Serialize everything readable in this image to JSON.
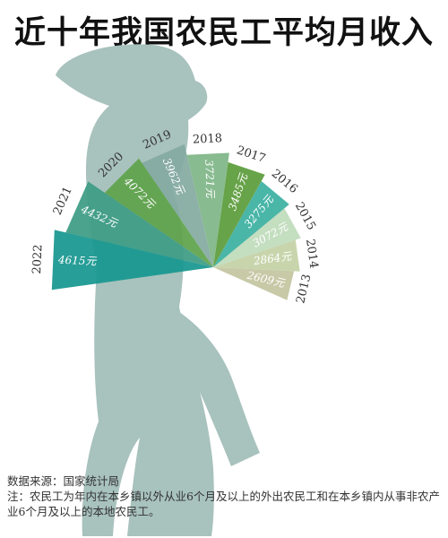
{
  "title": "近十年我国农民工平均月收入",
  "source": "数据来源：国家统计局",
  "note": "注：农民工为年内在本乡镇以外从业6个月及以上的外出农民工和在本乡镇内从事非农产业6个月及以上的本地农民工。",
  "chart_data": {
    "type": "radial-bar",
    "title": "近十年我国农民工平均月收入",
    "categories": [
      "2013",
      "2014",
      "2015",
      "2016",
      "2017",
      "2018",
      "2019",
      "2020",
      "2021",
      "2022"
    ],
    "values": [
      2609,
      2864,
      3072,
      3275,
      3485,
      3721,
      3962,
      4072,
      4432,
      4615
    ],
    "value_labels": [
      "2609元",
      "2864元",
      "3072元",
      "3275元",
      "3485元",
      "3721元",
      "3962元",
      "4072元",
      "4432元",
      "4615元"
    ],
    "colors": [
      "#c3c5a0",
      "#c4d2a6",
      "#c0dcbb",
      "#3bb0a1",
      "#5b9c3b",
      "#7fb688",
      "#84aaa0",
      "#5fa34a",
      "#3d9c84",
      "#17978f"
    ],
    "label_color": "#ffffff",
    "year_label_color": "#333333"
  }
}
